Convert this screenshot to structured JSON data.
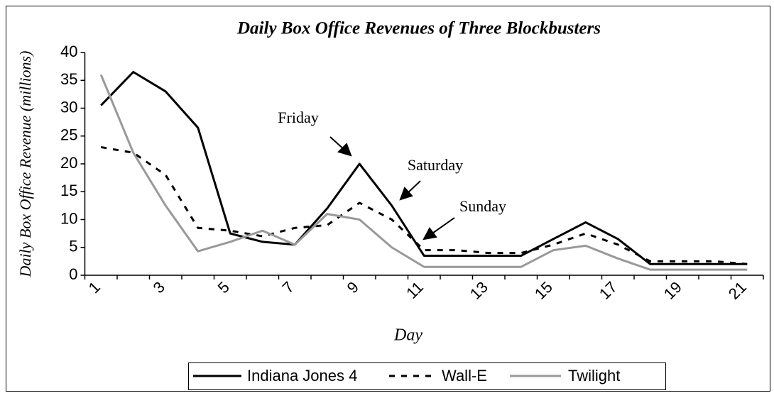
{
  "chart_data": {
    "type": "line",
    "title": "Daily Box Office Revenues of Three Blockbusters",
    "x_label": "Day",
    "y_label": "Daily Box Office Revenue (millions)",
    "categories": [
      "1",
      null,
      "3",
      null,
      "5",
      null,
      "7",
      null,
      "9",
      null,
      "11",
      null,
      "13",
      null,
      "15",
      null,
      "17",
      null,
      "19",
      null,
      "21"
    ],
    "ylim": [
      0,
      40
    ],
    "yticks": [
      0,
      5,
      10,
      15,
      20,
      25,
      30,
      35,
      40
    ],
    "grid": false,
    "legend": "bottom",
    "series": [
      {
        "name": "Indiana Jones 4",
        "color": "#000000",
        "style": "solid",
        "values": [
          30.5,
          36.5,
          33,
          26.5,
          7.5,
          6,
          5.5,
          12,
          20,
          12.5,
          3.5,
          3.5,
          3.5,
          3.5,
          6.5,
          9.5,
          6.5,
          2,
          2,
          2,
          2
        ]
      },
      {
        "name": "Wall-E",
        "color": "#000000",
        "style": "dashed",
        "values": [
          23,
          22,
          18,
          8.5,
          8,
          7,
          8.5,
          9,
          13,
          10,
          4.5,
          4.5,
          4,
          4,
          5.5,
          7.5,
          5.5,
          2.5,
          2.5,
          2.5,
          2
        ]
      },
      {
        "name": "Twilight",
        "color": "#999999",
        "style": "solid",
        "values": [
          36,
          22,
          12.5,
          4.3,
          6,
          8,
          5.5,
          11,
          10,
          5,
          1.5,
          1.5,
          1.5,
          1.5,
          4.5,
          5.3,
          3,
          1,
          1,
          1,
          1
        ]
      }
    ],
    "annotations": [
      "Friday",
      "Saturday",
      "Sunday"
    ]
  }
}
